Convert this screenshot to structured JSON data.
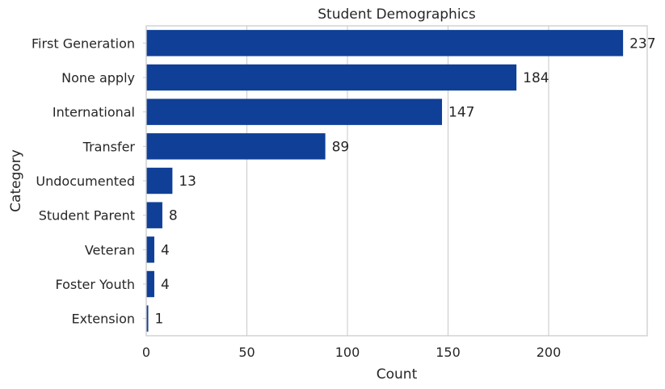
{
  "chart_data": {
    "type": "bar",
    "orientation": "horizontal",
    "title": "Student Demographics",
    "xlabel": "Count",
    "ylabel": "Category",
    "categories": [
      "First Generation",
      "None apply",
      "International",
      "Transfer",
      "Undocumented",
      "Student Parent",
      "Veteran",
      "Foster Youth",
      "Extension"
    ],
    "values": [
      237,
      184,
      147,
      89,
      13,
      8,
      4,
      4,
      1
    ],
    "data_labels": [
      "237",
      "184",
      "147",
      "89",
      "13",
      "8",
      "4",
      "4",
      "1"
    ],
    "xlim": [
      0,
      249
    ],
    "xticks": [
      0,
      50,
      100,
      150,
      200
    ],
    "xtick_labels": [
      "0",
      "50",
      "100",
      "150",
      "200"
    ],
    "grid": true,
    "legend": "none",
    "bar_color": "#0f3f96"
  }
}
